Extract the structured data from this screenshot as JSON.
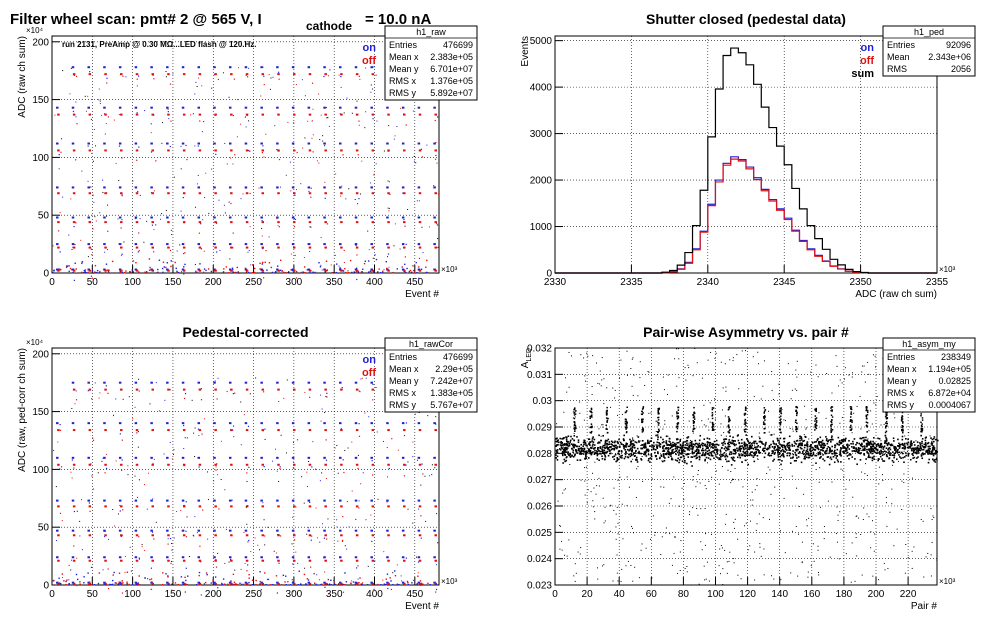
{
  "canvas_title": {
    "main": "Filter wheel scan: pmt#   2 @   565 V, I",
    "sub": "cathode",
    "tail": "= 10.0 nA"
  },
  "chart_data": [
    {
      "id": "raw",
      "type": "scatter",
      "title": "",
      "note": "run 2131, PreAmp @ 0.30 MΩ...LED flash @  120.Hz.",
      "xlabel": "Event #",
      "ylabel": "ADC (raw ch sum)",
      "x_exponent": "×10³",
      "y_exponent": "×10⁴",
      "xlim": [
        0,
        480
      ],
      "ylim": [
        0,
        205
      ],
      "xticks": [
        0,
        50,
        100,
        150,
        200,
        250,
        300,
        350,
        400,
        450
      ],
      "yticks": [
        0,
        50,
        100,
        150,
        200
      ],
      "grid": true,
      "legend_placement": "top-right",
      "legend": [
        {
          "label": "on",
          "color": "#1f1fd6"
        },
        {
          "label": "off",
          "color": "#e01010"
        }
      ],
      "stats": {
        "name": "h1_raw",
        "rows": [
          [
            "Entries",
            "476699"
          ],
          [
            "Mean x",
            "2.383e+05"
          ],
          [
            "Mean y",
            "6.701e+07"
          ],
          [
            "RMS x",
            "1.376e+05"
          ],
          [
            "RMS y",
            "5.892e+07"
          ]
        ]
      },
      "band_levels_on": [
        178,
        143,
        112,
        74,
        48,
        25,
        3
      ],
      "band_levels_off": [
        172,
        137,
        106,
        69,
        44,
        22,
        2
      ],
      "step_period": 19.5,
      "step_start": 5
    },
    {
      "id": "ped",
      "type": "line",
      "title": "Shutter closed (pedestal data)",
      "xlabel": "ADC (raw ch sum)",
      "ylabel": "Events",
      "x_exponent": "×10³",
      "xlim": [
        2330,
        2355
      ],
      "ylim": [
        0,
        5100
      ],
      "xticks": [
        2330,
        2335,
        2340,
        2345,
        2350,
        2355
      ],
      "yticks": [
        0,
        1000,
        2000,
        3000,
        4000,
        5000
      ],
      "grid": true,
      "legend_placement": "top-right",
      "legend": [
        {
          "label": "on",
          "color": "#1f1fd6"
        },
        {
          "label": "off",
          "color": "#e01010"
        },
        {
          "label": "sum",
          "color": "#000000"
        }
      ],
      "stats": {
        "name": "h1_ped",
        "rows": [
          [
            "Entries",
            "92096"
          ],
          [
            "Mean",
            "2.343e+06"
          ],
          [
            "RMS",
            "2056"
          ]
        ]
      },
      "series": [
        {
          "name": "on",
          "color": "#1f1fd6",
          "x": [
            2330,
            2337,
            2337.5,
            2338,
            2338.5,
            2339,
            2339.5,
            2340,
            2340.5,
            2341,
            2341.5,
            2342,
            2342.5,
            2343,
            2343.5,
            2344,
            2344.5,
            2345,
            2345.5,
            2346,
            2346.5,
            2347,
            2347.5,
            2348,
            2348.5,
            2349,
            2349.5,
            2350,
            2350.5
          ],
          "values": [
            0,
            10,
            30,
            90,
            230,
            520,
            900,
            1480,
            2000,
            2360,
            2500,
            2440,
            2280,
            2050,
            1800,
            1580,
            1380,
            1180,
            920,
            700,
            520,
            380,
            260,
            150,
            90,
            40,
            15,
            5,
            0
          ]
        },
        {
          "name": "off",
          "color": "#e01010",
          "x": [
            2330,
            2337,
            2337.5,
            2338,
            2338.5,
            2339,
            2339.5,
            2340,
            2340.5,
            2341,
            2341.5,
            2342,
            2342.5,
            2343,
            2343.5,
            2344,
            2344.5,
            2345,
            2345.5,
            2346,
            2346.5,
            2347,
            2347.5,
            2348,
            2348.5,
            2349,
            2349.5,
            2350,
            2350.5
          ],
          "values": [
            0,
            8,
            25,
            80,
            210,
            500,
            880,
            1450,
            1960,
            2320,
            2450,
            2410,
            2240,
            2010,
            1770,
            1550,
            1350,
            1150,
            900,
            680,
            500,
            360,
            250,
            145,
            85,
            38,
            14,
            5,
            0
          ]
        },
        {
          "name": "sum",
          "color": "#000000",
          "x": [
            2330,
            2337,
            2337.5,
            2338,
            2338.5,
            2339,
            2339.5,
            2340,
            2340.5,
            2341,
            2341.5,
            2342,
            2342.5,
            2343,
            2343.5,
            2344,
            2344.5,
            2345,
            2345.5,
            2346,
            2346.5,
            2347,
            2347.5,
            2348,
            2348.5,
            2349,
            2349.5,
            2350,
            2350.5
          ],
          "values": [
            0,
            18,
            55,
            170,
            440,
            1020,
            1780,
            2930,
            3960,
            4680,
            4840,
            4740,
            4480,
            4060,
            3570,
            3130,
            2730,
            2330,
            1820,
            1380,
            1020,
            740,
            510,
            295,
            175,
            78,
            29,
            10,
            0
          ]
        }
      ]
    },
    {
      "id": "rawcor",
      "type": "scatter",
      "title": "Pedestal-corrected",
      "xlabel": "Event #",
      "ylabel": "ADC (raw, ped-corr ch sum)",
      "x_exponent": "×10³",
      "y_exponent": "×10⁴",
      "xlim": [
        0,
        480
      ],
      "ylim": [
        0,
        205
      ],
      "xticks": [
        0,
        50,
        100,
        150,
        200,
        250,
        300,
        350,
        400,
        450
      ],
      "yticks": [
        0,
        50,
        100,
        150,
        200
      ],
      "grid": true,
      "legend_placement": "top-right",
      "legend": [
        {
          "label": "on",
          "color": "#1f1fd6"
        },
        {
          "label": "off",
          "color": "#e01010"
        }
      ],
      "stats": {
        "name": "h1_rawCor",
        "rows": [
          [
            "Entries",
            "476699"
          ],
          [
            "Mean x",
            "2.29e+05"
          ],
          [
            "Mean y",
            "7.242e+07"
          ],
          [
            "RMS x",
            "1.383e+05"
          ],
          [
            "RMS y",
            "5.767e+07"
          ]
        ]
      },
      "band_levels_on": [
        175,
        140,
        110,
        73,
        47,
        24,
        2
      ],
      "band_levels_off": [
        169,
        134,
        104,
        68,
        43,
        21,
        1
      ],
      "step_period": 19.5,
      "step_start": 5
    },
    {
      "id": "asym",
      "type": "scatter",
      "title": "Pair-wise Asymmetry vs. pair #",
      "xlabel": "Pair #",
      "ylabel": "A",
      "ylabel_sub": "LED",
      "x_exponent": "×10³",
      "xlim": [
        0,
        238
      ],
      "ylim": [
        0.023,
        0.032
      ],
      "xticks": [
        0,
        20,
        40,
        60,
        80,
        100,
        120,
        140,
        160,
        180,
        200,
        220
      ],
      "yticks": [
        0.023,
        0.024,
        0.025,
        0.026,
        0.027,
        0.028,
        0.029,
        0.03,
        0.031,
        0.032
      ],
      "grid": true,
      "stats": {
        "name": "h1_asym_my",
        "rows": [
          [
            "Entries",
            "238349"
          ],
          [
            "Mean x",
            "1.194e+05"
          ],
          [
            "Mean y",
            "0.02825"
          ],
          [
            "RMS x",
            "6.872e+04"
          ],
          [
            "RMS y",
            "0.0004067"
          ]
        ]
      },
      "band_center": 0.0282,
      "band_halfwidth": 0.0006,
      "spike_pairs": [
        12,
        22,
        32,
        44,
        54,
        64,
        76,
        86,
        98,
        108,
        118,
        130,
        140,
        150,
        162,
        172,
        184,
        194,
        206,
        216,
        228
      ],
      "spike_peak": 0.0298
    }
  ]
}
